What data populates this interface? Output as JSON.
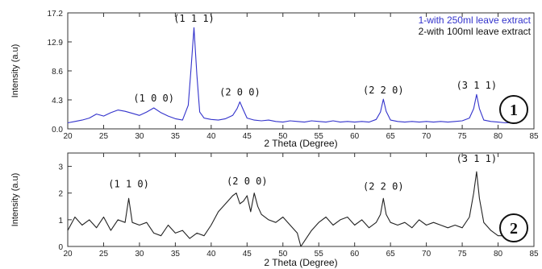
{
  "chart_data": [
    {
      "type": "line",
      "xlabel": "2 Theta (Degree)",
      "ylabel": "Intensity (a.u)",
      "xlim": [
        20,
        85
      ],
      "ylim": [
        0,
        17.2
      ],
      "xticks": [
        "20",
        "25",
        "30",
        "35",
        "40",
        "45",
        "50",
        "55",
        "60",
        "65",
        "70",
        "75",
        "80",
        "85"
      ],
      "yticks": [
        "0.0",
        "4.3",
        "8.6",
        "12.9",
        "17.2"
      ],
      "ytick_values": [
        0,
        4.3,
        8.6,
        12.9,
        17.2
      ],
      "legend_position": "top-right",
      "legend": [
        {
          "label": "1-with 250ml leave extract",
          "color": "#3333cc"
        },
        {
          "label": "2-with 100ml leave extract",
          "color": "#111111"
        }
      ],
      "badge": "1",
      "series": [
        {
          "color": "#3333cc",
          "x": [
            20,
            21,
            22,
            23,
            24,
            25,
            26,
            27,
            28,
            29,
            30,
            31,
            32,
            33,
            34,
            35,
            36,
            36.8,
            37.2,
            37.6,
            38.0,
            38.4,
            39,
            40,
            41,
            42,
            43,
            43.6,
            44.0,
            44.4,
            45,
            46,
            47,
            48,
            49,
            50,
            51,
            52,
            53,
            54,
            55,
            56,
            57,
            58,
            59,
            60,
            61,
            62,
            63,
            63.6,
            64.0,
            64.4,
            65,
            66,
            67,
            68,
            69,
            70,
            71,
            72,
            73,
            74,
            75,
            76,
            76.6,
            77.0,
            77.4,
            78,
            79,
            80,
            81,
            82
          ],
          "y": [
            0.9,
            1.1,
            1.3,
            1.6,
            2.2,
            1.9,
            2.4,
            2.8,
            2.6,
            2.3,
            2.0,
            2.5,
            3.1,
            2.4,
            1.9,
            1.5,
            1.3,
            3.5,
            9.0,
            15.0,
            8.0,
            2.5,
            1.6,
            1.4,
            1.3,
            1.5,
            2.0,
            3.0,
            4.0,
            3.0,
            1.6,
            1.3,
            1.2,
            1.3,
            1.1,
            1.0,
            1.2,
            1.1,
            1.0,
            1.2,
            1.1,
            1.0,
            1.2,
            1.0,
            1.1,
            1.0,
            1.1,
            1.0,
            1.4,
            2.5,
            4.4,
            2.6,
            1.3,
            1.1,
            1.0,
            1.1,
            1.0,
            1.1,
            1.0,
            1.1,
            1.0,
            1.1,
            1.2,
            1.6,
            3.0,
            5.1,
            3.0,
            1.3,
            1.1,
            1.0,
            0.9,
            0.9
          ]
        }
      ],
      "annotations": [
        {
          "text": "(1 0 0)",
          "x": 32,
          "y": 3.6
        },
        {
          "text": "(1 1 1)",
          "x": 37.6,
          "y": 15.4
        },
        {
          "text": "(2 0 0)",
          "x": 44,
          "y": 4.5
        },
        {
          "text": "(2 2 0)",
          "x": 64,
          "y": 4.8
        },
        {
          "text": "(3 1 1)",
          "x": 77,
          "y": 5.5
        }
      ]
    },
    {
      "type": "line",
      "xlabel": "2 Theta (Degree)",
      "ylabel": "Intensity (a.u)",
      "xlim": [
        20,
        85
      ],
      "ylim": [
        0,
        3.5
      ],
      "xticks": [
        "20",
        "25",
        "30",
        "35",
        "40",
        "45",
        "50",
        "55",
        "60",
        "65",
        "70",
        "75",
        "80",
        "85"
      ],
      "yticks": [
        "0",
        "1",
        "2",
        "3"
      ],
      "ytick_values": [
        0,
        1,
        2,
        3
      ],
      "badge": "2",
      "series": [
        {
          "color": "#222222",
          "x": [
            20,
            21,
            22,
            23,
            24,
            25,
            26,
            27,
            28,
            28.5,
            29,
            30,
            31,
            32,
            33,
            34,
            35,
            36,
            37,
            38,
            39,
            40,
            41,
            42,
            43,
            43.5,
            44,
            44.5,
            45,
            45.5,
            46,
            46.5,
            47,
            48,
            49,
            50,
            51,
            52,
            52.5,
            53,
            54,
            55,
            56,
            57,
            58,
            59,
            60,
            61,
            62,
            63,
            63.6,
            64,
            64.4,
            65,
            66,
            67,
            68,
            69,
            70,
            71,
            72,
            73,
            74,
            75,
            76,
            76.6,
            77,
            77.4,
            78,
            79,
            80,
            81,
            82
          ],
          "y": [
            0.6,
            1.1,
            0.8,
            1.0,
            0.7,
            1.1,
            0.6,
            1.0,
            0.9,
            1.8,
            0.9,
            0.8,
            0.9,
            0.5,
            0.4,
            0.8,
            0.5,
            0.6,
            0.3,
            0.5,
            0.4,
            0.8,
            1.3,
            1.6,
            1.9,
            2.0,
            1.6,
            1.7,
            1.9,
            1.3,
            2.0,
            1.5,
            1.2,
            1.0,
            0.9,
            1.1,
            0.8,
            0.5,
            0.0,
            0.2,
            0.6,
            0.9,
            1.1,
            0.8,
            1.0,
            1.1,
            0.8,
            1.0,
            0.7,
            0.9,
            1.2,
            1.8,
            1.2,
            0.9,
            0.8,
            0.9,
            0.7,
            1.0,
            0.8,
            0.9,
            0.8,
            0.7,
            0.8,
            0.7,
            1.1,
            2.0,
            2.8,
            1.8,
            0.9,
            0.6,
            0.4,
            0.4,
            0.3
          ]
        }
      ],
      "annotations": [
        {
          "text": "(1 1 0)",
          "x": 28.5,
          "y": 2.1
        },
        {
          "text": "(2 0 0)",
          "x": 45,
          "y": 2.2
        },
        {
          "text": "(2 2 0)",
          "x": 64,
          "y": 2.0
        },
        {
          "text": "(3 1 1)",
          "x": 77,
          "y": 3.05
        }
      ]
    }
  ]
}
